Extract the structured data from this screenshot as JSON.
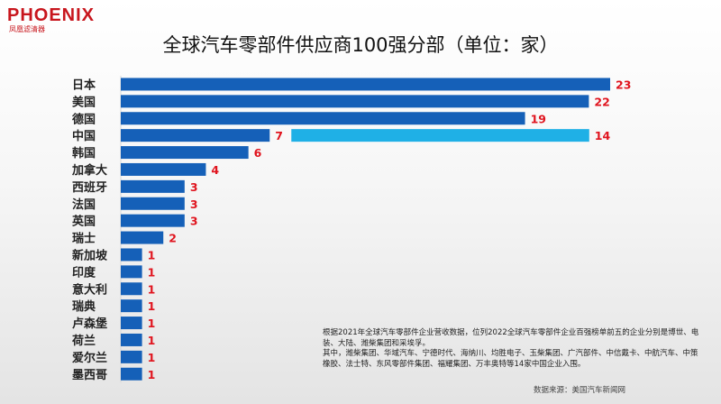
{
  "brand": {
    "name": "PHOENIX",
    "subtitle": "凤凰滤清器"
  },
  "chart_data": {
    "type": "bar",
    "orientation": "horizontal",
    "title": "全球汽车零部件供应商100强分部（单位：家）",
    "categories": [
      "日本",
      "美国",
      "德国",
      "中国",
      "韩国",
      "加拿大",
      "西班牙",
      "法国",
      "英国",
      "瑞士",
      "新加坡",
      "印度",
      "意大利",
      "瑞典",
      "卢森堡",
      "荷兰",
      "爱尔兰",
      "墨西哥"
    ],
    "values": [
      23,
      22,
      19,
      7,
      6,
      4,
      3,
      3,
      3,
      2,
      1,
      1,
      1,
      1,
      1,
      1,
      1,
      1
    ],
    "extra_bar": {
      "category": "中国",
      "value": 14,
      "color": "#1fb0e6"
    },
    "bar_color": "#1560b8",
    "label_color": "#e0141e",
    "xlim": [
      0,
      23
    ]
  },
  "note": {
    "line1": "根据2021年全球汽车零部件企业营收数据，位列2022全球汽车零部件企业百强榜单前五的企业分别是博世、电装、大陆、潍柴集团和采埃孚。",
    "line2": "其中，潍柴集团、华域汽车、宁德时代、海纳川、均胜电子、玉柴集团、广汽部件、中信戴卡、中航汽车、中策橡胶、法士特、东风零部件集团、福耀集团、万丰奥特等14家中国企业入围。"
  },
  "source": "数据来源：美国汽车新闻网"
}
